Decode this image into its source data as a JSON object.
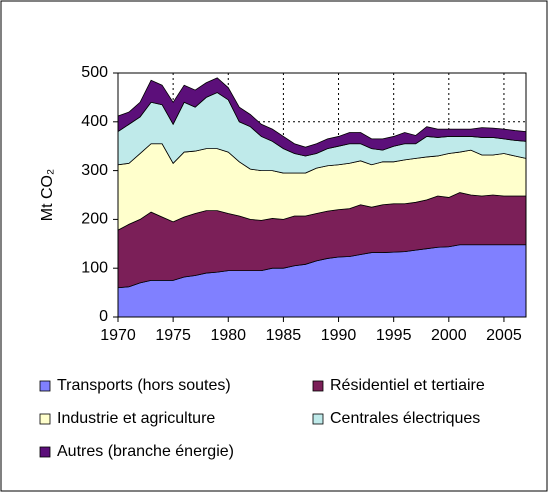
{
  "chart_data": {
    "type": "stacked-area",
    "y_label": "Mt CO₂",
    "x": [
      1970,
      1971,
      1972,
      1973,
      1974,
      1975,
      1976,
      1977,
      1978,
      1979,
      1980,
      1981,
      1982,
      1983,
      1984,
      1985,
      1986,
      1987,
      1988,
      1989,
      1990,
      1991,
      1992,
      1993,
      1994,
      1995,
      1996,
      1997,
      1998,
      1999,
      2000,
      2001,
      2002,
      2003,
      2004,
      2005,
      2006,
      2007
    ],
    "xlim": [
      1970,
      2007
    ],
    "xticks": [
      1970,
      1975,
      1980,
      1985,
      1990,
      1995,
      2000,
      2005
    ],
    "ylim": [
      0,
      500
    ],
    "yticks": [
      0,
      100,
      200,
      300,
      400,
      500
    ],
    "grid": true,
    "series": [
      {
        "name": "Transports (hors soutes)",
        "color": "#8080ff",
        "values": [
          60,
          62,
          70,
          75,
          75,
          75,
          82,
          85,
          90,
          92,
          95,
          95,
          95,
          95,
          100,
          100,
          105,
          108,
          115,
          120,
          123,
          124,
          128,
          132,
          132,
          133,
          134,
          137,
          140,
          143,
          144,
          148,
          148,
          148,
          148,
          148,
          148,
          148
        ]
      },
      {
        "name": "Résidentiel et tertiaire",
        "color": "#7b1f58",
        "values": [
          118,
          128,
          130,
          140,
          130,
          120,
          123,
          127,
          128,
          126,
          117,
          112,
          105,
          103,
          102,
          100,
          102,
          99,
          97,
          97,
          97,
          98,
          102,
          93,
          98,
          99,
          98,
          98,
          100,
          105,
          101,
          107,
          102,
          100,
          102,
          100,
          100,
          100
        ]
      },
      {
        "name": "Industrie et agriculture",
        "color": "#ffffcc",
        "values": [
          134,
          125,
          135,
          140,
          150,
          120,
          133,
          128,
          127,
          127,
          126,
          111,
          103,
          102,
          98,
          95,
          88,
          88,
          93,
          93,
          92,
          93,
          90,
          87,
          88,
          86,
          90,
          90,
          88,
          82,
          90,
          83,
          92,
          84,
          82,
          87,
          82,
          77
        ]
      },
      {
        "name": "Centrales électriques",
        "color": "#bfeaea",
        "values": [
          68,
          80,
          75,
          85,
          80,
          80,
          102,
          90,
          105,
          115,
          107,
          82,
          87,
          70,
          60,
          50,
          40,
          35,
          30,
          35,
          38,
          40,
          35,
          33,
          24,
          32,
          33,
          30,
          42,
          38,
          35,
          32,
          28,
          36,
          36,
          30,
          32,
          35
        ]
      },
      {
        "name": "Autres (branche énergie)",
        "color": "#5c0f7a",
        "values": [
          32,
          25,
          30,
          45,
          40,
          45,
          35,
          35,
          30,
          30,
          25,
          30,
          25,
          25,
          25,
          25,
          20,
          18,
          20,
          20,
          20,
          23,
          23,
          20,
          23,
          20,
          23,
          17,
          20,
          17,
          15,
          15,
          15,
          20,
          19,
          20,
          20,
          20
        ]
      }
    ]
  }
}
